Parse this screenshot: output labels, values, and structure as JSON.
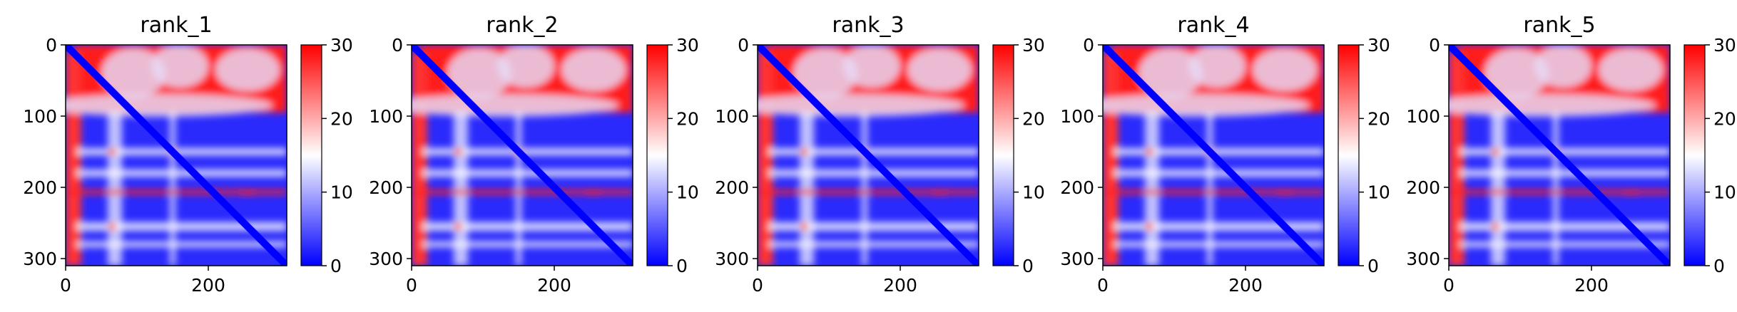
{
  "chart_data": [
    {
      "type": "heatmap",
      "title": "rank_1",
      "x_ticks": [
        0,
        200
      ],
      "y_ticks": [
        0,
        100,
        200,
        300
      ],
      "xlim": [
        0,
        310
      ],
      "ylim": [
        310,
        0
      ],
      "colorbar": {
        "ticks": [
          0,
          10,
          20,
          30
        ],
        "range": [
          0,
          30
        ],
        "colormap": "bwr"
      },
      "size": 310
    },
    {
      "type": "heatmap",
      "title": "rank_2",
      "x_ticks": [
        0,
        200
      ],
      "y_ticks": [
        0,
        100,
        200,
        300
      ],
      "xlim": [
        0,
        310
      ],
      "ylim": [
        310,
        0
      ],
      "colorbar": {
        "ticks": [
          0,
          10,
          20,
          30
        ],
        "range": [
          0,
          30
        ],
        "colormap": "bwr"
      },
      "size": 310
    },
    {
      "type": "heatmap",
      "title": "rank_3",
      "x_ticks": [
        0,
        200
      ],
      "y_ticks": [
        0,
        100,
        200,
        300
      ],
      "xlim": [
        0,
        310
      ],
      "ylim": [
        310,
        0
      ],
      "colorbar": {
        "ticks": [
          0,
          10,
          20,
          30
        ],
        "range": [
          0,
          30
        ],
        "colormap": "bwr"
      },
      "size": 310
    },
    {
      "type": "heatmap",
      "title": "rank_4",
      "x_ticks": [
        0,
        200
      ],
      "y_ticks": [
        0,
        100,
        200,
        300
      ],
      "xlim": [
        0,
        310
      ],
      "ylim": [
        310,
        0
      ],
      "colorbar": {
        "ticks": [
          0,
          10,
          20,
          30
        ],
        "range": [
          0,
          30
        ],
        "colormap": "bwr"
      },
      "size": 310
    },
    {
      "type": "heatmap",
      "title": "rank_5",
      "x_ticks": [
        0,
        200
      ],
      "y_ticks": [
        0,
        100,
        200,
        300
      ],
      "xlim": [
        0,
        310
      ],
      "ylim": [
        310,
        0
      ],
      "colorbar": {
        "ticks": [
          0,
          10,
          20,
          30
        ],
        "range": [
          0,
          30
        ],
        "colormap": "bwr"
      },
      "size": 310
    }
  ],
  "colors": {
    "low": "#0000ff",
    "mid": "#ffffff",
    "high": "#ff0000"
  }
}
